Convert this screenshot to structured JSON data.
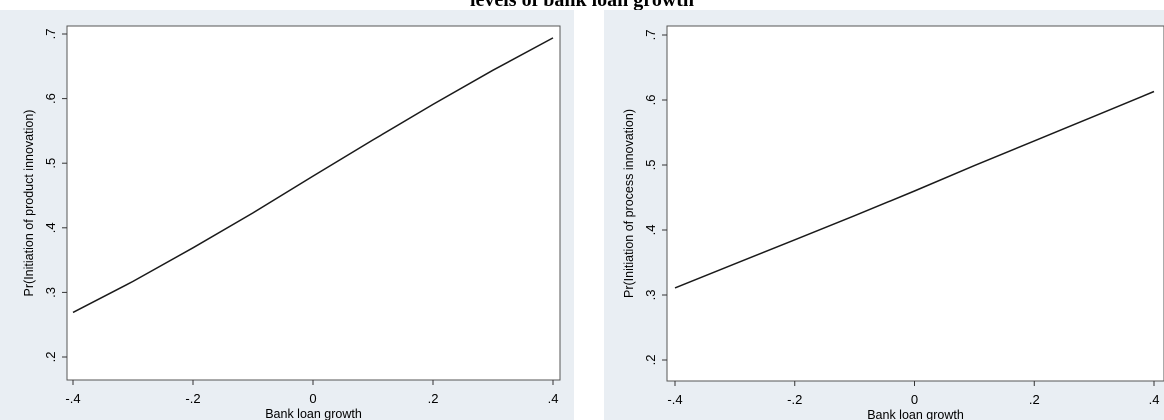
{
  "title": "levels of bank loan growth",
  "chart_data": [
    {
      "type": "line",
      "xlabel": "Bank loan growth",
      "ylabel": "Pr(Initiation of product innovation)",
      "xlim": [
        -0.4,
        0.4
      ],
      "ylim": [
        0.2,
        0.7
      ],
      "xticks": [
        -0.4,
        -0.2,
        0,
        0.2,
        0.4
      ],
      "xtick_labels": [
        "-.4",
        "-.2",
        "0",
        ".2",
        ".4"
      ],
      "yticks": [
        0.2,
        0.3,
        0.4,
        0.5,
        0.6,
        0.7
      ],
      "ytick_labels": [
        ".2",
        ".3",
        ".4",
        ".5",
        ".6",
        ".7"
      ],
      "grid": false,
      "line_color": "#1a1a1a",
      "series": [
        {
          "x": [
            -0.4,
            -0.3,
            -0.2,
            -0.1,
            0,
            0.1,
            0.2,
            0.3,
            0.4
          ],
          "y": [
            0.269,
            0.317,
            0.369,
            0.423,
            0.48,
            0.536,
            0.591,
            0.644,
            0.694
          ]
        }
      ]
    },
    {
      "type": "line",
      "xlabel": "Bank loan growth",
      "ylabel": "Pr(Initiation of process innovation)",
      "xlim": [
        -0.4,
        0.4
      ],
      "ylim": [
        0.2,
        0.7
      ],
      "xticks": [
        -0.4,
        -0.2,
        0,
        0.2,
        0.4
      ],
      "xtick_labels": [
        "-.4",
        "-.2",
        "0",
        ".2",
        ".4"
      ],
      "yticks": [
        0.2,
        0.3,
        0.4,
        0.5,
        0.6,
        0.7
      ],
      "ytick_labels": [
        ".2",
        ".3",
        ".4",
        ".5",
        ".6",
        ".7"
      ],
      "grid": false,
      "line_color": "#1a1a1a",
      "series": [
        {
          "x": [
            -0.4,
            -0.3,
            -0.2,
            -0.1,
            0,
            0.1,
            0.2,
            0.3,
            0.4
          ],
          "y": [
            0.311,
            0.348,
            0.385,
            0.422,
            0.46,
            0.499,
            0.537,
            0.575,
            0.613
          ]
        }
      ]
    }
  ]
}
